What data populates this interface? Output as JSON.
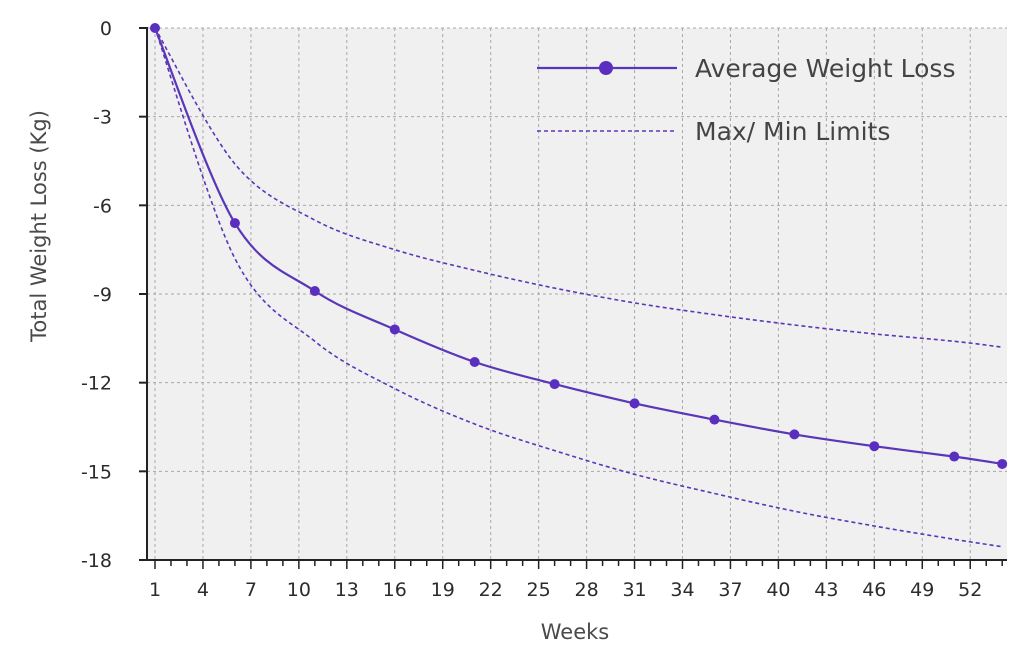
{
  "chart_data": {
    "type": "line",
    "title": "",
    "xlabel": "Weeks",
    "ylabel": "Total Weight Loss (Kg)",
    "xlim": [
      0.5,
      54.3
    ],
    "ylim": [
      -18,
      0
    ],
    "x_ticks": [
      1,
      4,
      7,
      10,
      13,
      16,
      19,
      22,
      25,
      28,
      31,
      34,
      37,
      40,
      43,
      46,
      49,
      52
    ],
    "x_tick_labels": [
      "1",
      "4",
      "7",
      "10",
      "13",
      "16",
      "19",
      "22",
      "25",
      "28",
      "31",
      "34",
      "37",
      "40",
      "43",
      "46",
      "49",
      "52"
    ],
    "y_ticks": [
      0,
      -3,
      -6,
      -9,
      -12,
      -15,
      -18
    ],
    "y_tick_labels": [
      "0",
      "-3",
      "-6",
      "-9",
      "-12",
      "-15",
      "-18"
    ],
    "grid": true,
    "legend_position": "top-right",
    "series": [
      {
        "name": "Average Weight Loss",
        "style": "solid-with-markers",
        "x": [
          1,
          6,
          11,
          16,
          21,
          26,
          31,
          36,
          41,
          46,
          51,
          54
        ],
        "y": [
          0,
          -6.6,
          -8.9,
          -10.2,
          -11.3,
          -12.05,
          -12.7,
          -13.25,
          -13.75,
          -14.15,
          -14.5,
          -14.75
        ]
      },
      {
        "name": "Max/ Min Limits",
        "style": "dotted",
        "x": [
          1,
          6,
          11,
          16,
          21,
          26,
          31,
          36,
          41,
          46,
          51,
          54
        ],
        "y": [
          0,
          -4.6,
          -6.5,
          -7.5,
          -8.2,
          -8.8,
          -9.3,
          -9.7,
          -10.05,
          -10.35,
          -10.6,
          -10.8
        ]
      },
      {
        "name": "",
        "style": "dotted",
        "x": [
          1,
          6,
          11,
          16,
          21,
          26,
          31,
          36,
          41,
          46,
          51,
          54
        ],
        "y": [
          0,
          -7.8,
          -10.6,
          -12.2,
          -13.4,
          -14.3,
          -15.1,
          -15.75,
          -16.35,
          -16.85,
          -17.3,
          -17.55
        ]
      }
    ],
    "colors": {
      "line": "#5a36b8",
      "marker": "#5a2fc0",
      "plot_bg": "#f0f0f0",
      "grid": "#a8a8a8",
      "axis": "#222222"
    }
  }
}
